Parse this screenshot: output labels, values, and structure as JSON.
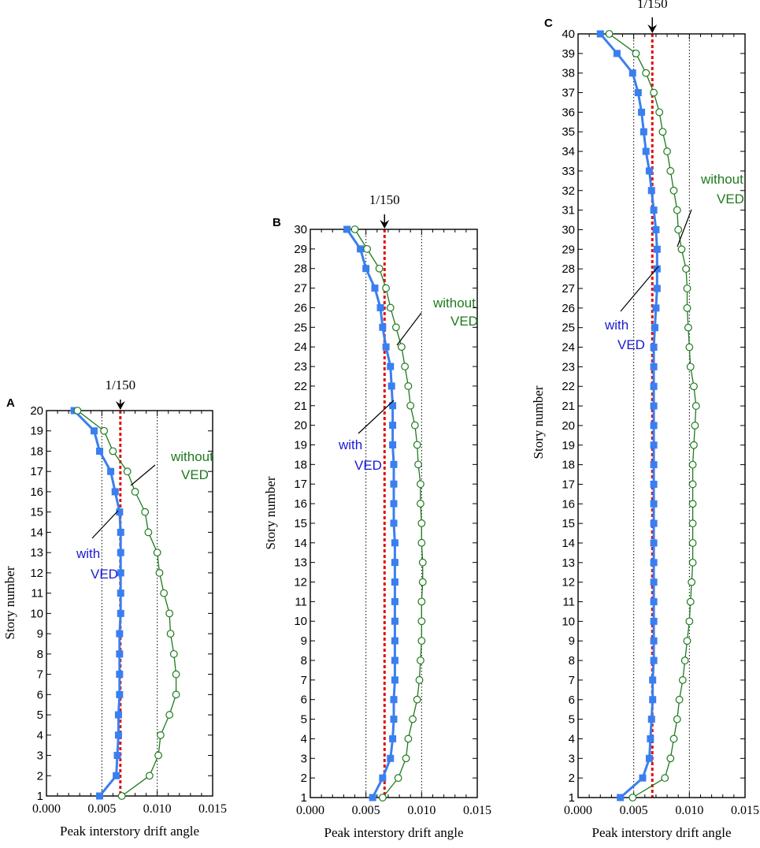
{
  "chart_data": [
    {
      "type": "line",
      "panel": "A",
      "xlabel": "Peak interstory drift angle",
      "ylabel": "Story number",
      "xlim": [
        0.0,
        0.015
      ],
      "ylim": [
        1,
        20
      ],
      "xticks": [
        "0.000",
        "0.005",
        "0.010",
        "0.015"
      ],
      "grid": "dotted vertical at 0.005 and 0.010",
      "reference_line": {
        "x": 0.00667,
        "label": "1/150"
      },
      "series": [
        {
          "name": "with VED",
          "color": "#3a7ff0",
          "marker": "square",
          "x": [
            0.0048,
            0.0063,
            0.0064,
            0.0065,
            0.0065,
            0.0066,
            0.0066,
            0.0066,
            0.0066,
            0.0067,
            0.0067,
            0.0067,
            0.0067,
            0.0067,
            0.0066,
            0.0062,
            0.0058,
            0.0048,
            0.0043,
            0.0025
          ],
          "y": [
            1,
            2,
            3,
            4,
            5,
            6,
            7,
            8,
            9,
            10,
            11,
            12,
            13,
            14,
            15,
            16,
            17,
            18,
            19,
            20
          ]
        },
        {
          "name": "without VED",
          "color": "#1e7a1e",
          "marker": "open-circle",
          "x": [
            0.0068,
            0.0093,
            0.0101,
            0.0103,
            0.0111,
            0.0117,
            0.0117,
            0.0115,
            0.0112,
            0.0111,
            0.0106,
            0.0102,
            0.01,
            0.0092,
            0.0089,
            0.008,
            0.0073,
            0.006,
            0.0052,
            0.0028
          ],
          "y": [
            1,
            2,
            3,
            4,
            5,
            6,
            7,
            8,
            9,
            10,
            11,
            12,
            13,
            14,
            15,
            16,
            17,
            18,
            19,
            20
          ]
        }
      ],
      "annotations": [
        {
          "text": [
            "with",
            "VED"
          ],
          "color": "#1a1ad6"
        },
        {
          "text": [
            "without",
            "VED"
          ],
          "color": "#1e7a1e"
        }
      ]
    },
    {
      "type": "line",
      "panel": "B",
      "xlabel": "Peak interstory drift angle",
      "ylabel": "Story number",
      "xlim": [
        0.0,
        0.015
      ],
      "ylim": [
        1,
        30
      ],
      "xticks": [
        "0.000",
        "0.005",
        "0.010",
        "0.015"
      ],
      "grid": "dotted vertical at 0.005 and 0.010",
      "reference_line": {
        "x": 0.00667,
        "label": "1/150"
      },
      "series": [
        {
          "name": "with VED",
          "color": "#3a7ff0",
          "marker": "square",
          "x": [
            0.0056,
            0.0065,
            0.0072,
            0.0074,
            0.0075,
            0.0075,
            0.0076,
            0.0076,
            0.0076,
            0.0076,
            0.0076,
            0.0076,
            0.0076,
            0.0076,
            0.0075,
            0.0075,
            0.0075,
            0.0075,
            0.0074,
            0.0074,
            0.0074,
            0.0073,
            0.0072,
            0.0068,
            0.0065,
            0.0063,
            0.0058,
            0.005,
            0.0045,
            0.0033
          ],
          "y": [
            1,
            2,
            3,
            4,
            5,
            6,
            7,
            8,
            9,
            10,
            11,
            12,
            13,
            14,
            15,
            16,
            17,
            18,
            19,
            20,
            21,
            22,
            23,
            24,
            25,
            26,
            27,
            28,
            29,
            30
          ]
        },
        {
          "name": "without VED",
          "color": "#1e7a1e",
          "marker": "open-circle",
          "x": [
            0.0065,
            0.0079,
            0.0086,
            0.0088,
            0.0092,
            0.0096,
            0.0098,
            0.0099,
            0.01,
            0.01,
            0.01,
            0.0101,
            0.0101,
            0.01,
            0.01,
            0.0099,
            0.0099,
            0.0097,
            0.0096,
            0.0094,
            0.009,
            0.0088,
            0.0085,
            0.0082,
            0.0077,
            0.0072,
            0.0068,
            0.0062,
            0.0051,
            0.004
          ],
          "y": [
            1,
            2,
            3,
            4,
            5,
            6,
            7,
            8,
            9,
            10,
            11,
            12,
            13,
            14,
            15,
            16,
            17,
            18,
            19,
            20,
            21,
            22,
            23,
            24,
            25,
            26,
            27,
            28,
            29,
            30
          ]
        }
      ],
      "annotations": [
        {
          "text": [
            "with",
            "VED"
          ],
          "color": "#1a1ad6"
        },
        {
          "text": [
            "without",
            "VED"
          ],
          "color": "#1e7a1e"
        }
      ]
    },
    {
      "type": "line",
      "panel": "C",
      "xlabel": "Peak interstory drift angle",
      "ylabel": "Story number",
      "xlim": [
        0.0,
        0.015
      ],
      "ylim": [
        1,
        40
      ],
      "xticks": [
        "0.000",
        "0.005",
        "0.010",
        "0.015"
      ],
      "grid": "dotted vertical at 0.005 and 0.010",
      "reference_line": {
        "x": 0.00667,
        "label": "1/150"
      },
      "series": [
        {
          "name": "with VED",
          "color": "#3a7ff0",
          "marker": "square",
          "x": [
            0.0038,
            0.0058,
            0.0064,
            0.0065,
            0.0066,
            0.0067,
            0.0067,
            0.0068,
            0.0068,
            0.0068,
            0.0068,
            0.0068,
            0.0068,
            0.0068,
            0.0068,
            0.0068,
            0.0068,
            0.0068,
            0.0068,
            0.0068,
            0.0068,
            0.0068,
            0.0068,
            0.0068,
            0.0069,
            0.007,
            0.0071,
            0.0071,
            0.0071,
            0.007,
            0.0068,
            0.0066,
            0.0064,
            0.0061,
            0.0059,
            0.0057,
            0.0054,
            0.0049,
            0.0035,
            0.002
          ],
          "y": [
            1,
            2,
            3,
            4,
            5,
            6,
            7,
            8,
            9,
            10,
            11,
            12,
            13,
            14,
            15,
            16,
            17,
            18,
            19,
            20,
            21,
            22,
            23,
            24,
            25,
            26,
            27,
            28,
            29,
            30,
            31,
            32,
            33,
            34,
            35,
            36,
            37,
            38,
            39,
            40
          ]
        },
        {
          "name": "without VED",
          "color": "#1e7a1e",
          "marker": "open-circle",
          "x": [
            0.0049,
            0.0078,
            0.0083,
            0.0086,
            0.0089,
            0.0091,
            0.0094,
            0.0096,
            0.0098,
            0.01,
            0.0101,
            0.0102,
            0.0103,
            0.0103,
            0.0103,
            0.0103,
            0.0103,
            0.0103,
            0.0104,
            0.0105,
            0.0106,
            0.0104,
            0.0101,
            0.01,
            0.0099,
            0.0098,
            0.0098,
            0.0097,
            0.0093,
            0.009,
            0.0089,
            0.0086,
            0.0083,
            0.008,
            0.0076,
            0.0073,
            0.0068,
            0.0061,
            0.0052,
            0.0028
          ],
          "y": [
            1,
            2,
            3,
            4,
            5,
            6,
            7,
            8,
            9,
            10,
            11,
            12,
            13,
            14,
            15,
            16,
            17,
            18,
            19,
            20,
            21,
            22,
            23,
            24,
            25,
            26,
            27,
            28,
            29,
            30,
            31,
            32,
            33,
            34,
            35,
            36,
            37,
            38,
            39,
            40
          ]
        }
      ],
      "annotations": [
        {
          "text": [
            "with",
            "VED"
          ],
          "color": "#1a1ad6"
        },
        {
          "text": [
            "without",
            "VED"
          ],
          "color": "#1e7a1e"
        }
      ]
    }
  ]
}
